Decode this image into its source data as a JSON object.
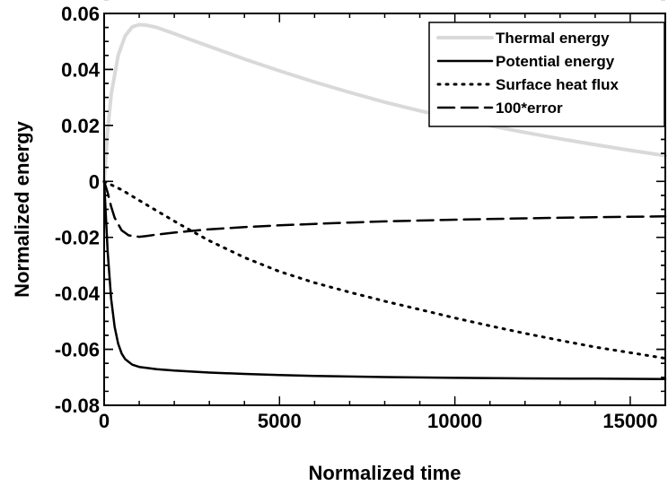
{
  "chart_data": {
    "type": "line",
    "title": "",
    "xlabel": "Normalized time",
    "ylabel": "Normalized energy",
    "xlim": [
      0,
      16000
    ],
    "ylim": [
      -0.08,
      0.06
    ],
    "grid": false,
    "legend_position": "top-right",
    "x_ticks": [
      0,
      5000,
      10000,
      15000
    ],
    "x_tick_labels": [
      "0",
      "5000",
      "10000",
      "15000"
    ],
    "y_ticks": [
      -0.08,
      -0.06,
      -0.04,
      -0.02,
      0,
      0.02,
      0.04,
      0.06
    ],
    "y_tick_labels": [
      "-0.08",
      "-0.06",
      "-0.04",
      "-0.02",
      "0",
      "0.02",
      "0.04",
      "0.06"
    ],
    "series": [
      {
        "name": "Thermal energy",
        "color": "#d9d9d9",
        "style": "solid",
        "x": [
          0,
          100,
          200,
          400,
          600,
          800,
          1000,
          1200,
          1500,
          2000,
          2500,
          3000,
          4000,
          5000,
          6000,
          7000,
          8000,
          9000,
          10000,
          11000,
          12000,
          13000,
          14000,
          15000,
          16000
        ],
        "y": [
          0.0,
          0.018,
          0.031,
          0.045,
          0.052,
          0.0552,
          0.056,
          0.0558,
          0.055,
          0.0528,
          0.0505,
          0.0482,
          0.0437,
          0.0395,
          0.0355,
          0.0318,
          0.0283,
          0.0252,
          0.0225,
          0.0199,
          0.0175,
          0.0152,
          0.0131,
          0.0111,
          0.0092
        ]
      },
      {
        "name": "Potential energy",
        "color": "#000000",
        "style": "solid",
        "x": [
          0,
          100,
          200,
          300,
          400,
          500,
          600,
          800,
          1000,
          1500,
          2000,
          3000,
          4000,
          5000,
          6000,
          8000,
          10000,
          12000,
          14000,
          16000
        ],
        "y": [
          0.0,
          -0.025,
          -0.042,
          -0.052,
          -0.058,
          -0.0615,
          -0.0635,
          -0.0655,
          -0.0663,
          -0.0671,
          -0.0676,
          -0.0683,
          -0.0688,
          -0.0692,
          -0.0695,
          -0.0699,
          -0.0702,
          -0.0704,
          -0.0705,
          -0.0706
        ]
      },
      {
        "name": "Surface heat flux",
        "color": "#000000",
        "style": "dotted",
        "x": [
          0,
          500,
          1000,
          1500,
          2000,
          2500,
          3000,
          4000,
          5000,
          6000,
          7000,
          8000,
          9000,
          10000,
          11000,
          12000,
          13000,
          14000,
          15000,
          16000
        ],
        "y": [
          0.0,
          -0.003,
          -0.0068,
          -0.0105,
          -0.0142,
          -0.0178,
          -0.0212,
          -0.0272,
          -0.0322,
          -0.0362,
          -0.0396,
          -0.0428,
          -0.0458,
          -0.0488,
          -0.0516,
          -0.0543,
          -0.0568,
          -0.0592,
          -0.0612,
          -0.0632
        ]
      },
      {
        "name": "100*error",
        "color": "#000000",
        "style": "dashed",
        "x": [
          0,
          100,
          200,
          300,
          500,
          700,
          1000,
          1200,
          1500,
          2000,
          2500,
          3000,
          4000,
          5000,
          6000,
          7000,
          8000,
          10000,
          12000,
          14000,
          16000
        ],
        "y": [
          0.0,
          -0.004,
          -0.009,
          -0.013,
          -0.0175,
          -0.0193,
          -0.0198,
          -0.0195,
          -0.019,
          -0.0183,
          -0.0177,
          -0.0171,
          -0.0163,
          -0.0157,
          -0.0152,
          -0.0147,
          -0.0143,
          -0.0137,
          -0.0132,
          -0.0128,
          -0.0125
        ]
      }
    ]
  }
}
